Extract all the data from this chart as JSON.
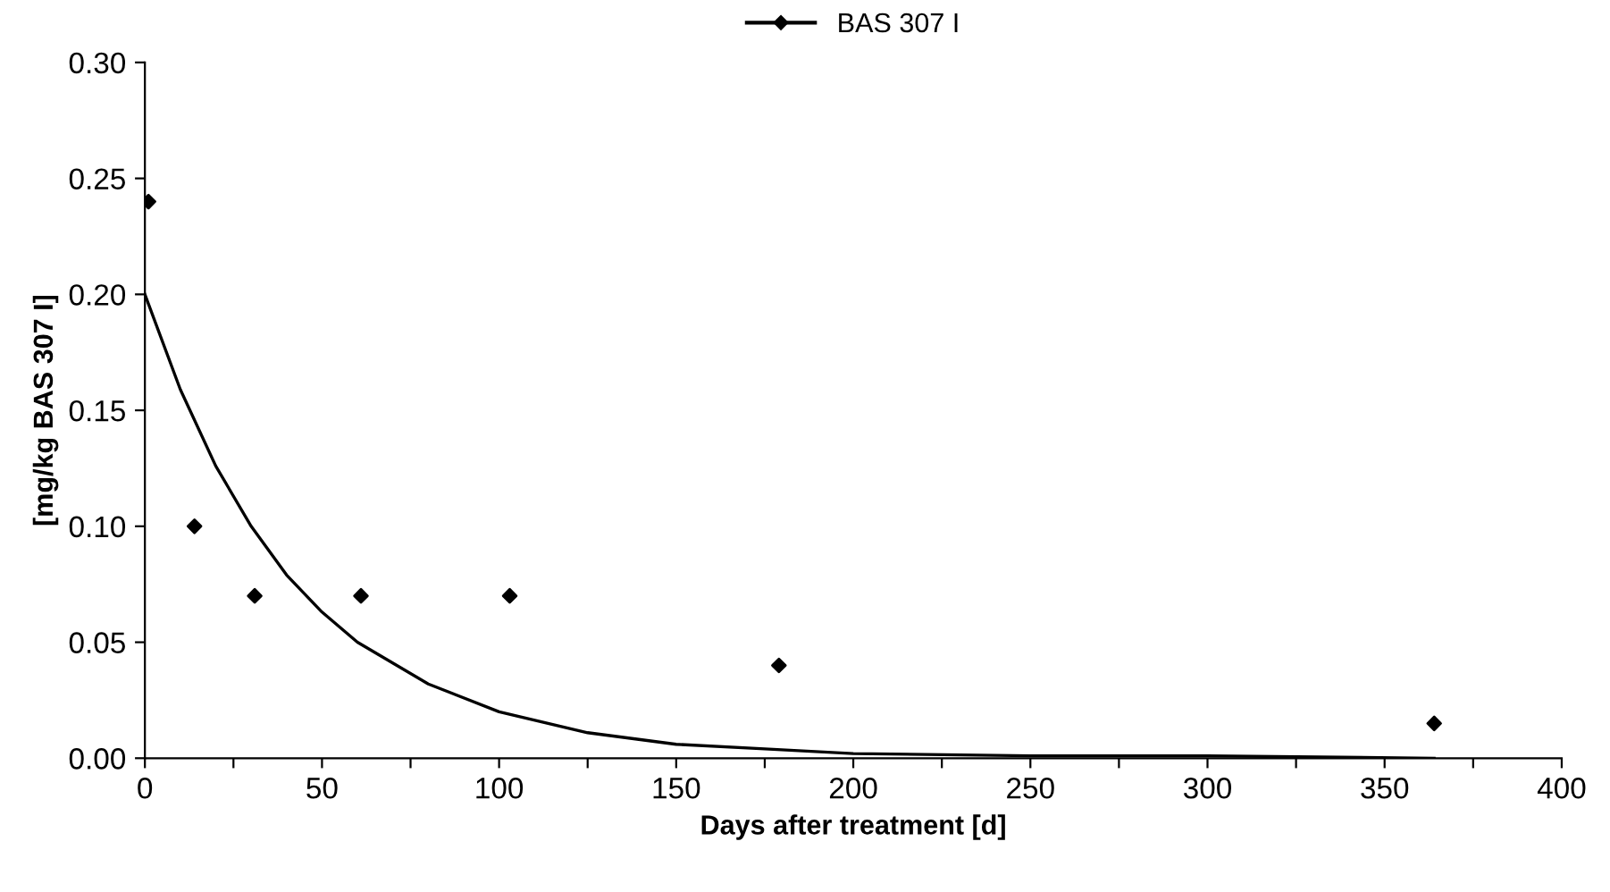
{
  "chart_data": {
    "type": "scatter",
    "xlabel": "Days after treatment [d]",
    "ylabel": "[mg/kg BAS 307 I]",
    "xlim": [
      0,
      400
    ],
    "ylim": [
      0,
      0.3
    ],
    "xticks": [
      0,
      {
        "value": 25,
        "label": null
      },
      50,
      {
        "value": 75,
        "label": null
      },
      100,
      {
        "value": 125,
        "label": null
      },
      150,
      {
        "value": 175,
        "label": null
      },
      200,
      {
        "value": 225,
        "label": null
      },
      250,
      {
        "value": 275,
        "label": null
      },
      300,
      {
        "value": 325,
        "label": null
      },
      350,
      {
        "value": 375,
        "label": null
      },
      400
    ],
    "yticks": [
      {
        "value": 0,
        "label": "0.00"
      },
      {
        "value": 0.05,
        "label": "0.05"
      },
      {
        "value": 0.1,
        "label": "0.10"
      },
      {
        "value": 0.15,
        "label": "0.15"
      },
      {
        "value": 0.2,
        "label": "0.20"
      },
      {
        "value": 0.25,
        "label": "0.25"
      },
      {
        "value": 0.3,
        "label": "0.30"
      }
    ],
    "grid": false,
    "legend": "top",
    "series": [
      {
        "name": "BAS 307 I",
        "marker": "diamond",
        "color": "#000000",
        "x": [
          1,
          14,
          31,
          61,
          103,
          179,
          364
        ],
        "values": [
          0.24,
          0.1,
          0.07,
          0.07,
          0.07,
          0.04,
          0.015
        ]
      },
      {
        "type": "line",
        "marker": "none",
        "color": "#000000",
        "line_style": "solid",
        "x": [
          0,
          10,
          20,
          30,
          40,
          50,
          60,
          80,
          100,
          125,
          150,
          175,
          200,
          250,
          300,
          364
        ],
        "values": [
          0.2,
          0.159,
          0.126,
          0.1,
          0.079,
          0.063,
          0.05,
          0.032,
          0.02,
          0.011,
          0.006,
          0.004,
          0.002,
          0.001,
          0.001,
          0
        ]
      }
    ]
  }
}
